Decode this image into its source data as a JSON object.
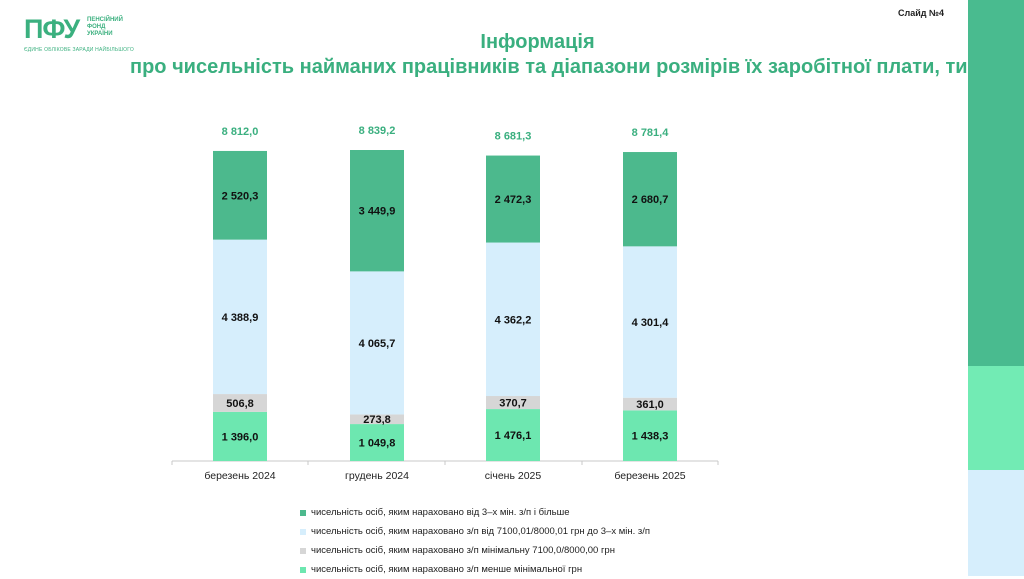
{
  "header": {
    "logo": {
      "mark": "ПФУ",
      "name_lines": [
        "ПЕНСІЙНИЙ",
        "ФОНД",
        "УКРАЇНИ"
      ],
      "tagline": "ЄДИНЕ ОБЛІКОВЕ ЗАРАДИ НАЙБІЛЬШОГО"
    },
    "slide_number": "Слайд №4"
  },
  "colors": {
    "accent": "#3aaf7f",
    "above_3_min": "#4cb98d",
    "from_min_to_3": "#d6eefc",
    "minimal": "#d6d6d6",
    "below_min": "#6de7b0",
    "stripe_top": "#49bb8f",
    "stripe_mid": "#72ebb4",
    "stripe_bottom": "#d6eefc"
  },
  "chart_data": {
    "type": "bar",
    "stacked": true,
    "title": [
      "Інформація",
      "про чисельність найманих працівників та діапазони розмірів їх заробітної плати, тис. осіб"
    ],
    "categories": [
      "березень 2024",
      "грудень 2024",
      "січень 2025",
      "березень 2025"
    ],
    "totals": [
      8812.0,
      8839.2,
      8681.3,
      8781.4
    ],
    "total_labels": [
      "8 812,0",
      "8 839,2",
      "8 681,3",
      "8 781,4"
    ],
    "series": [
      {
        "key": "below_min",
        "name": "чисельність осіб, яким нараховано з/п менше мінімальної грн",
        "values": [
          1396.0,
          1049.8,
          1476.1,
          1438.3
        ],
        "labels": [
          "1 396,0",
          "1 049,8",
          "1 476,1",
          "1 438,3"
        ]
      },
      {
        "key": "minimal",
        "name": "чисельність осіб, яким нараховано з/п  мінімальну 7100,0/8000,00  грн",
        "values": [
          506.8,
          273.8,
          370.7,
          361.0
        ],
        "labels": [
          "506,8",
          "273,8",
          "370,7",
          "361,0"
        ]
      },
      {
        "key": "from_min_to_3",
        "name": "чисельність осіб, яким нараховано з/п від 7100,01/8000,01  грн до 3–х мін. з/п",
        "values": [
          4388.9,
          4065.7,
          4362.2,
          4301.4
        ],
        "labels": [
          "4 388,9",
          "4 065,7",
          "4 362,2",
          "4 301,4"
        ]
      },
      {
        "key": "above_3_min",
        "name": "чисельність осіб, яким нараховано від 3–х мін. з/п і більше",
        "values": [
          2520.3,
          3449.9,
          2472.3,
          2680.7
        ],
        "labels": [
          "2 520,3",
          "3 449,9",
          "2 472,3",
          "2 680,7"
        ]
      }
    ],
    "legend_order": [
      "above_3_min",
      "from_min_to_3",
      "minimal",
      "below_min"
    ],
    "legend_position": "bottom",
    "grid": false
  }
}
